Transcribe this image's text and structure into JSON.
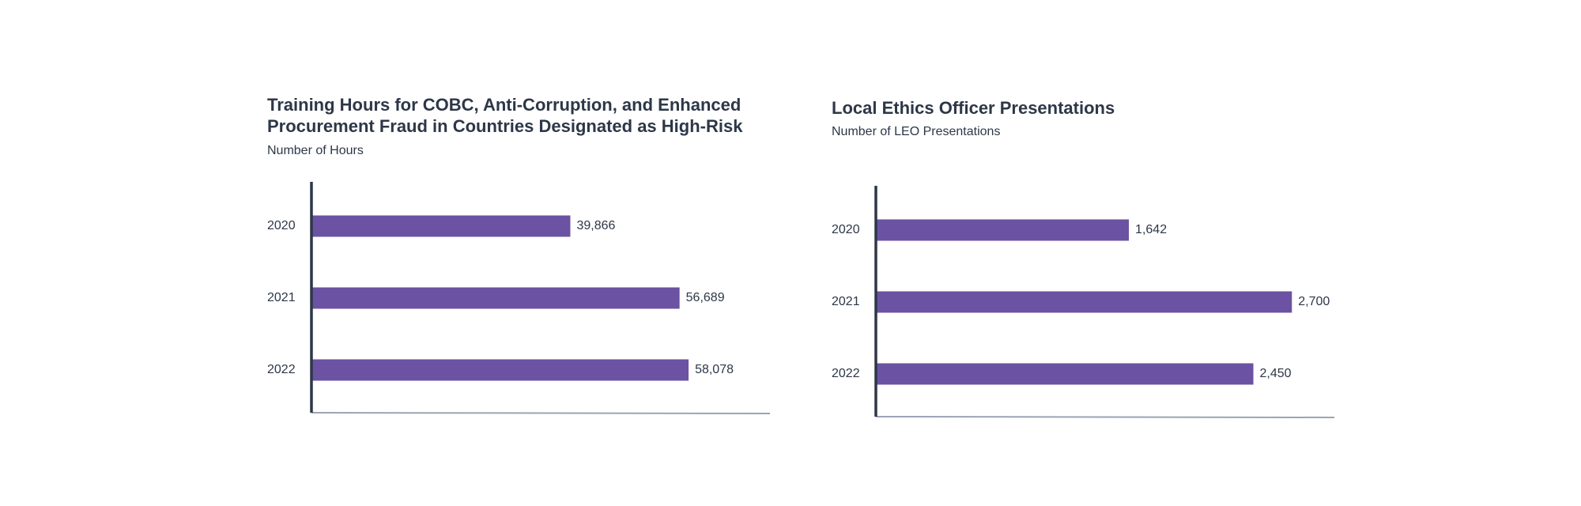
{
  "colors": {
    "bar": "#6b52a2",
    "axis": "#2d3748",
    "baseline": "#9aa4b5",
    "text": "#2d3748"
  },
  "chart_data": [
    {
      "type": "bar",
      "orientation": "horizontal",
      "title": "Training Hours for COBC, Anti-Corruption, and Enhanced Procurement Fraud in Countries Designated as High-Risk",
      "subtitle": "Number of Hours",
      "categories": [
        "2020",
        "2021",
        "2022"
      ],
      "values": [
        39866,
        56689,
        58078
      ],
      "value_labels": [
        "39,866",
        "56,689",
        "58,078"
      ],
      "xlim": [
        0,
        70000
      ],
      "grid": false,
      "legend": "none"
    },
    {
      "type": "bar",
      "orientation": "horizontal",
      "title": "Local Ethics Officer Presentations",
      "subtitle": "Number of LEO Presentations",
      "categories": [
        "2020",
        "2021",
        "2022"
      ],
      "values": [
        1642,
        2700,
        2450
      ],
      "value_labels": [
        "1,642",
        "2,700",
        "2,450"
      ],
      "xlim": [
        0,
        2950
      ],
      "grid": false,
      "legend": "none"
    }
  ]
}
